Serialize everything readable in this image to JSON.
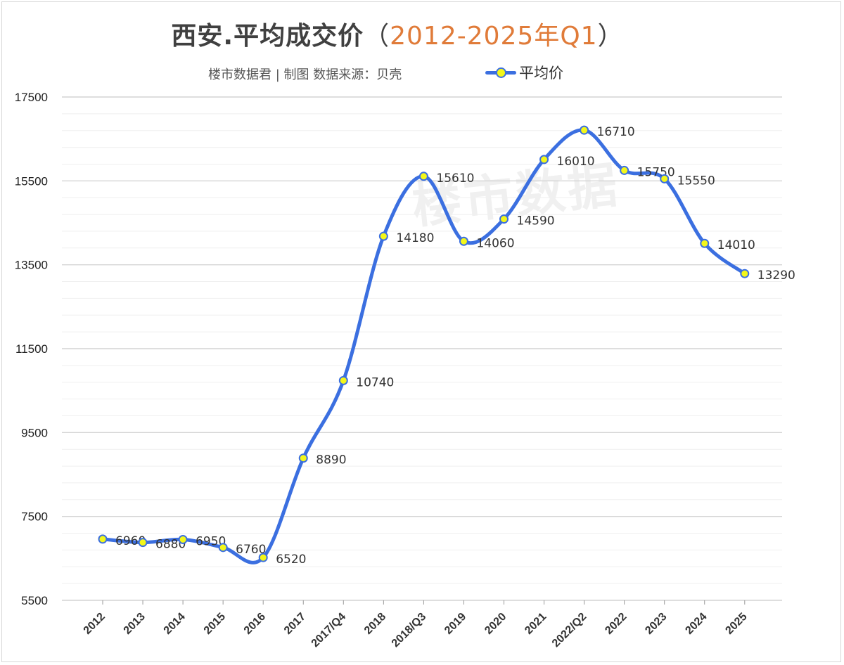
{
  "title": {
    "main": "西安.平均成交价",
    "open_paren": "（",
    "accent": "2012-2025年Q1",
    "close_paren": "）"
  },
  "credit": "楼市数据君 | 制图   数据来源：贝壳",
  "watermark": "楼市数据",
  "colors": {
    "line": "#3b6fe0",
    "marker_fill": "#f3f71a",
    "accent": "#e07b39"
  },
  "chart_data": {
    "type": "line",
    "title": "西安.平均成交价（2012-2025年Q1）",
    "categories": [
      "2012",
      "2013",
      "2014",
      "2015",
      "2016",
      "2017",
      "2017/Q4",
      "2018",
      "2018/Q3",
      "2019",
      "2020",
      "2021",
      "2022/Q2",
      "2022",
      "2023",
      "2024",
      "2025"
    ],
    "series": [
      {
        "name": "平均价",
        "values": [
          6960,
          6880,
          6950,
          6760,
          6520,
          8890,
          10740,
          14180,
          15610,
          14060,
          14590,
          16010,
          16710,
          15750,
          15550,
          14010,
          13290
        ]
      }
    ],
    "ylim": [
      5500,
      17500
    ],
    "yticks": [
      5500,
      7500,
      9500,
      11500,
      13500,
      15500,
      17500
    ],
    "legend": "top",
    "grid": true,
    "smooth": true
  }
}
